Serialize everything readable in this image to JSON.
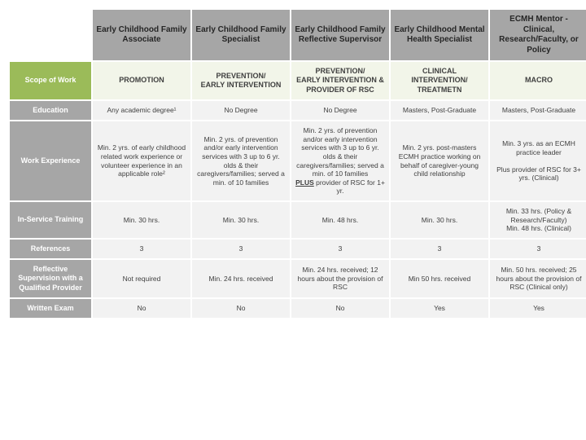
{
  "columns": [
    "Early Childhood Family Associate",
    "Early Childhood Family Specialist",
    "Early Childhood Family Reflective Supervisor",
    "Early Childhood Mental Health Specialist",
    "ECMH Mentor - Clinical, Research/Faculty, or Policy"
  ],
  "rows": {
    "scope": {
      "label": "Scope of Work",
      "cells": [
        "PROMOTION",
        "PREVENTION/\nEARLY INTERVENTION",
        "PREVENTION/\nEARLY INTERVENTION & PROVIDER OF RSC",
        "CLINICAL INTERVENTION/\nTREATMETN",
        "MACRO"
      ]
    },
    "education": {
      "label": "Education",
      "cells": [
        "Any academic degree¹",
        "No Degree",
        "No Degree",
        "Masters, Post-Graduate",
        "Masters, Post-Graduate"
      ]
    },
    "work": {
      "label": "Work Experience",
      "cells": [
        "Min. 2 yrs. of early childhood related work experience or volunteer experience in an applicable role²",
        "Min. 2 yrs. of prevention and/or early intervention services with 3 up to 6 yr. olds & their caregivers/families; served a min. of 10 families",
        "",
        "Min. 2 yrs. post-masters ECMH practice working on behalf of caregiver-young child relationship",
        "Min. 3 yrs. as an ECMH practice leader\n\nPlus provider of RSC for 3+ yrs. (Clinical)"
      ],
      "special_cell3": {
        "pre": "Min. 2 yrs. of prevention and/or early intervention services with 3 up to 6 yr. olds & their caregivers/families; served a min. of 10 families",
        "u": "PLUS",
        "post": " provider of RSC for 1+ yr."
      }
    },
    "training": {
      "label": "In-Service Training",
      "cells": [
        "Min. 30 hrs.",
        "Min. 30 hrs.",
        "Min. 48 hrs.",
        "Min. 30 hrs.",
        "Min. 33 hrs. (Policy & Research/Faculty)\nMin. 48 hrs. (Clinical)"
      ]
    },
    "references": {
      "label": "References",
      "cells": [
        "3",
        "3",
        "3",
        "3",
        "3"
      ]
    },
    "rsc": {
      "label": "Reflective Supervision with a Qualified Provider",
      "cells": [
        "Not required",
        "Min. 24 hrs. received",
        "Min. 24 hrs. received; 12 hours about the provision of RSC",
        "Min 50 hrs. received",
        "Min. 50 hrs. received; 25 hours about the provision of RSC (Clinical only)"
      ]
    },
    "exam": {
      "label": "Written Exam",
      "cells": [
        "No",
        "No",
        "No",
        "Yes",
        "Yes"
      ]
    }
  },
  "colors": {
    "header_bg": "#a6a6a6",
    "scope_label_bg": "#9bbb59",
    "scope_cell_bg": "#f2f5e9",
    "data_bg": "#f2f2f2"
  }
}
